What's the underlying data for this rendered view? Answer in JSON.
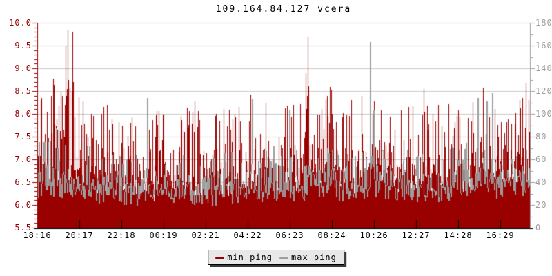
{
  "page": {
    "background": "#ffffff"
  },
  "chart_data": {
    "type": "area",
    "title": "109.164.84.127 vcera",
    "subtitle": "",
    "description": "24-hour ping monitoring graph: min ping plotted on left axis as dark red filled area, max ping plotted on right axis as gray line",
    "x_axis": {
      "tick_labels": [
        "18:16",
        "20:17",
        "22:18",
        "00:19",
        "02:21",
        "04:22",
        "06:23",
        "08:24",
        "10:26",
        "12:27",
        "14:28",
        "16:29"
      ],
      "hours_between_ticks": 2,
      "total_hours": 23.4,
      "label_color": "#000000"
    },
    "left_axis": {
      "series": "min ping",
      "min": 5.5,
      "max": 10.0,
      "tick_step": 0.5,
      "minor_tick_step": 0.1,
      "tick_labels": [
        "10.0",
        "9.5",
        "9.0",
        "8.5",
        "8.0",
        "7.5",
        "7.0",
        "6.5",
        "6.0",
        "5.5"
      ],
      "color": "#990000"
    },
    "right_axis": {
      "series": "max ping",
      "min": 0,
      "max": 180,
      "tick_step": 20,
      "minor_tick_step": 10,
      "tick_labels": [
        "180",
        "160",
        "140",
        "120",
        "100",
        "80",
        "60",
        "40",
        "20",
        "0"
      ],
      "color": "#9e9e9e"
    },
    "grid": {
      "horizontal_lines": true,
      "vertical_lines": false,
      "color": "#c8c8c8"
    },
    "bottom_axis_color": "#000000",
    "noise_seed": 7,
    "series": [
      {
        "name": "min ping",
        "axis": "left",
        "color": "#990000",
        "style": "filled_area",
        "hourly_typical": [
          6.55,
          6.6,
          6.5,
          6.4,
          6.3,
          6.25,
          6.25,
          6.2,
          6.25,
          6.3,
          6.3,
          6.35,
          6.45,
          6.5,
          6.5,
          6.45,
          6.55,
          6.45,
          6.45,
          6.4,
          6.45,
          6.5,
          6.55,
          6.6,
          6.6
        ],
        "hourly_peak": [
          8.3,
          8.4,
          8.0,
          8.15,
          7.7,
          8.0,
          7.9,
          7.95,
          7.9,
          8.0,
          7.8,
          8.0,
          8.3,
          8.1,
          8.3,
          8.0,
          8.1,
          7.9,
          8.15,
          7.9,
          8.0,
          8.3,
          7.9,
          8.35,
          8.2
        ],
        "spikes": [
          [
            0.16,
            8.3
          ],
          [
            0.46,
            8.05
          ],
          [
            1.34,
            9.5
          ],
          [
            1.44,
            9.85
          ],
          [
            1.67,
            9.8
          ],
          [
            3.15,
            8.15
          ],
          [
            6.0,
            8.0
          ],
          [
            6.82,
            7.95
          ],
          [
            8.46,
            7.95
          ],
          [
            12.16,
            8.2
          ],
          [
            12.75,
            8.9
          ],
          [
            12.85,
            9.7
          ],
          [
            14.0,
            8.0
          ],
          [
            14.9,
            8.3
          ],
          [
            15.93,
            8.0
          ],
          [
            17.64,
            8.15
          ],
          [
            18.79,
            8.0
          ],
          [
            19.05,
            8.2
          ],
          [
            20.0,
            7.95
          ],
          [
            20.69,
            8.25
          ],
          [
            22.92,
            8.3
          ],
          [
            23.05,
            8.35
          ],
          [
            23.21,
            8.05
          ]
        ]
      },
      {
        "name": "max ping",
        "axis": "right",
        "color": "#9e9e9e",
        "style": "line",
        "hourly_typical": [
          33,
          35,
          32,
          30,
          28,
          27,
          27,
          26,
          27,
          28,
          29,
          30,
          32,
          33,
          32,
          31,
          33,
          31,
          30,
          30,
          31,
          33,
          34,
          35,
          34
        ],
        "hourly_peak": [
          68,
          75,
          65,
          62,
          58,
          60,
          58,
          56,
          58,
          60,
          62,
          60,
          66,
          64,
          66,
          62,
          68,
          62,
          65,
          60,
          64,
          72,
          66,
          70,
          66
        ],
        "spikes": [
          [
            0.5,
            75
          ],
          [
            0.9,
            88
          ],
          [
            5.2,
            114
          ],
          [
            10.2,
            113
          ],
          [
            11.95,
            103
          ],
          [
            15.8,
            163
          ],
          [
            15.95,
            103
          ],
          [
            20.9,
            114
          ],
          [
            21.35,
            111
          ],
          [
            21.6,
            118
          ]
        ]
      }
    ]
  },
  "legend": {
    "items": [
      {
        "label": "min ping",
        "color": "#990000"
      },
      {
        "label": "max ping",
        "color": "#9e9e9e"
      }
    ]
  }
}
